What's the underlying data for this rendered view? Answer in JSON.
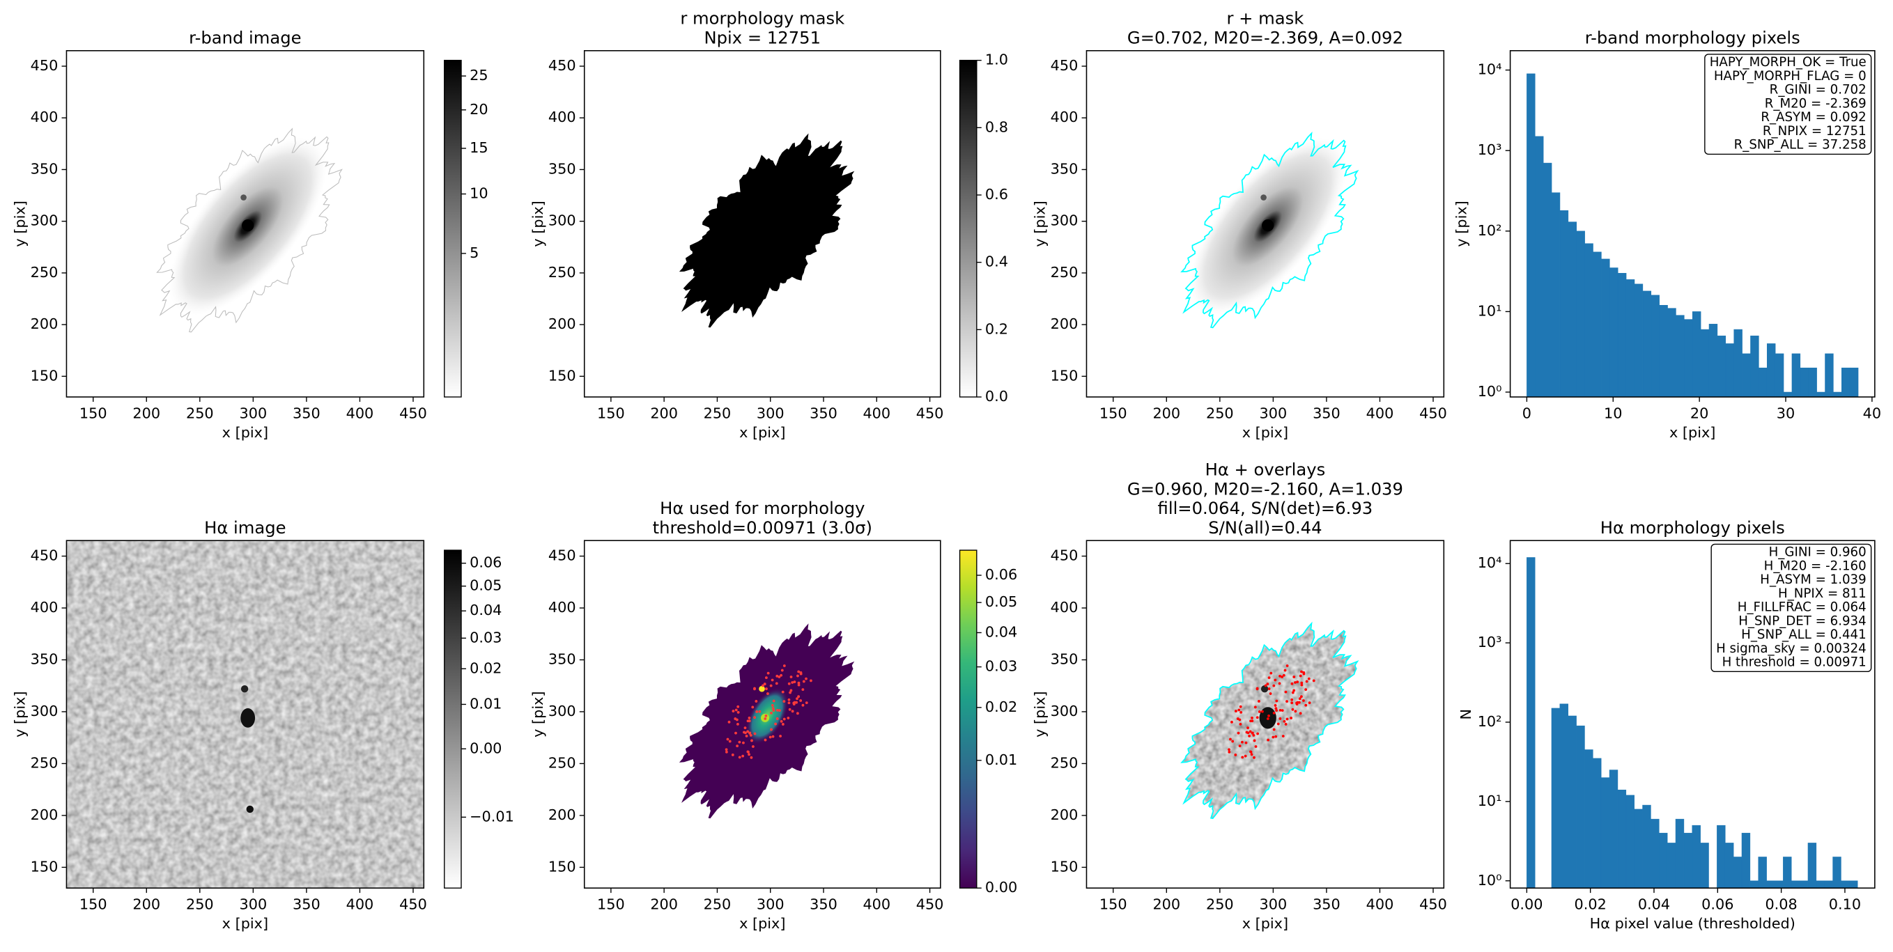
{
  "chart_data": [
    {
      "type": "image",
      "title": [
        "r-band image"
      ],
      "xlabel": "x [pix]",
      "ylabel": "y [pix]",
      "xlim": [
        125,
        460
      ],
      "ylim": [
        130,
        465
      ],
      "xticks": [
        150,
        200,
        250,
        300,
        350,
        400,
        450
      ],
      "yticks": [
        150,
        200,
        250,
        300,
        350,
        400,
        450
      ],
      "cmap": "gray_r",
      "colorbar": {
        "lim": [
          0,
          27.5
        ],
        "scale": "sqrt",
        "ticks": [
          5,
          10,
          15,
          20,
          25
        ]
      }
    },
    {
      "type": "image",
      "title": [
        "r morphology mask",
        "Npix = 12751"
      ],
      "xlabel": "x [pix]",
      "ylabel": "y [pix]",
      "xlim": [
        125,
        460
      ],
      "ylim": [
        130,
        465
      ],
      "xticks": [
        150,
        200,
        250,
        300,
        350,
        400,
        450
      ],
      "yticks": [
        150,
        200,
        250,
        300,
        350,
        400,
        450
      ],
      "cmap": "gray_r",
      "colorbar": {
        "lim": [
          0,
          1
        ],
        "scale": "linear",
        "ticks": [
          {
            "value": 0,
            "label": "0.0"
          },
          {
            "value": 0.2,
            "label": "0.2"
          },
          {
            "value": 0.4,
            "label": "0.4"
          },
          {
            "value": 0.6,
            "label": "0.6"
          },
          {
            "value": 0.8,
            "label": "0.8"
          },
          {
            "value": 1,
            "label": "1.0"
          }
        ]
      }
    },
    {
      "type": "image",
      "title": [
        "r + mask",
        "G=0.702, M20=-2.369, A=0.092"
      ],
      "xlabel": "x [pix]",
      "ylabel": "y [pix]",
      "xlim": [
        125,
        460
      ],
      "ylim": [
        130,
        465
      ],
      "xticks": [
        150,
        200,
        250,
        300,
        350,
        400,
        450
      ],
      "yticks": [
        150,
        200,
        250,
        300,
        350,
        400,
        450
      ],
      "cmap": "gray_r",
      "contour_color": "#00ffff"
    },
    {
      "type": "histogram",
      "title": [
        "r-band morphology pixels"
      ],
      "xlabel": "x [pix]",
      "ylabel": "y [pix]",
      "color": "#1f77b4",
      "log_y": true,
      "xlim": [
        -1.92,
        40.32
      ],
      "xticks": [
        0,
        10,
        20,
        30,
        40
      ],
      "ylim": [
        0.87,
        17400
      ],
      "yticks": [
        {
          "value": 1,
          "label": "10⁰"
        },
        {
          "value": 10,
          "label": "10¹"
        },
        {
          "value": 100,
          "label": "10²"
        },
        {
          "value": 1000,
          "label": "10³"
        },
        {
          "value": 10000,
          "label": "10⁴"
        }
      ],
      "bins": [
        0,
        0.96,
        1.92,
        2.88,
        3.84,
        4.8,
        5.76,
        6.72,
        7.68,
        8.64,
        9.6,
        10.56,
        11.52,
        12.48,
        13.44,
        14.4,
        15.36,
        16.32,
        17.28,
        18.24,
        19.2,
        20.16,
        21.12,
        22.08,
        23.04,
        24,
        24.96,
        25.92,
        26.88,
        27.84,
        28.8,
        29.76,
        30.72,
        31.68,
        32.64,
        33.6,
        34.56,
        35.52,
        36.48,
        37.44,
        38.4
      ],
      "values": [
        9000,
        1500,
        700,
        300,
        180,
        130,
        100,
        70,
        55,
        45,
        35,
        30,
        25,
        22,
        18,
        16,
        12,
        11,
        9,
        8,
        10,
        6,
        7,
        5,
        4,
        6,
        3,
        5,
        2,
        4,
        3,
        1,
        3,
        2,
        2,
        1,
        3,
        1,
        2,
        2
      ],
      "annotation_lines": [
        "HAPY_MORPH_OK = True",
        "HAPY_MORPH_FLAG = 0",
        "R_GINI = 0.702",
        "R_M20 = -2.369",
        "R_ASYM = 0.092",
        "R_NPIX = 12751",
        "R_SNP_ALL = 37.258"
      ]
    },
    {
      "type": "image",
      "title": [
        "Hα image"
      ],
      "xlabel": "x [pix]",
      "ylabel": "y [pix]",
      "xlim": [
        125,
        460
      ],
      "ylim": [
        130,
        465
      ],
      "xticks": [
        150,
        200,
        250,
        300,
        350,
        400,
        450
      ],
      "yticks": [
        150,
        200,
        250,
        300,
        350,
        400,
        450
      ],
      "cmap": "gray_r",
      "colorbar": {
        "lim": [
          -0.0135,
          0.066
        ],
        "scale": "sqrt",
        "ticks": [
          {
            "value": -0.01,
            "label": "−0.01"
          },
          {
            "value": 0,
            "label": "0.00"
          },
          {
            "value": 0.01,
            "label": "0.01"
          },
          {
            "value": 0.02,
            "label": "0.02"
          },
          {
            "value": 0.03,
            "label": "0.03"
          },
          {
            "value": 0.04,
            "label": "0.04"
          },
          {
            "value": 0.05,
            "label": "0.05"
          },
          {
            "value": 0.06,
            "label": "0.06"
          }
        ]
      }
    },
    {
      "type": "image",
      "title": [
        "Hα used for morphology",
        "threshold=0.00971 (3.0σ)"
      ],
      "xlabel": "x [pix]",
      "ylabel": "y [pix]",
      "xlim": [
        125,
        460
      ],
      "ylim": [
        130,
        465
      ],
      "xticks": [
        150,
        200,
        250,
        300,
        350,
        400,
        450
      ],
      "yticks": [
        150,
        200,
        250,
        300,
        350,
        400,
        450
      ],
      "cmap": "viridis",
      "colorbar": {
        "lim": [
          0,
          0.07
        ],
        "scale": "sqrt",
        "ticks": [
          {
            "value": 0,
            "label": "0.00"
          },
          {
            "value": 0.01,
            "label": "0.01"
          },
          {
            "value": 0.02,
            "label": "0.02"
          },
          {
            "value": 0.03,
            "label": "0.03"
          },
          {
            "value": 0.04,
            "label": "0.04"
          },
          {
            "value": 0.05,
            "label": "0.05"
          },
          {
            "value": 0.06,
            "label": "0.06"
          }
        ]
      }
    },
    {
      "type": "image",
      "title": [
        "Hα + overlays",
        "G=0.960, M20=-2.160, A=1.039",
        "fill=0.064, S/N(det)=6.93",
        "S/N(all)=0.44"
      ],
      "xlabel": "x [pix]",
      "ylabel": "y [pix]",
      "xlim": [
        125,
        460
      ],
      "ylim": [
        130,
        465
      ],
      "xticks": [
        150,
        200,
        250,
        300,
        350,
        400,
        450
      ],
      "yticks": [
        150,
        200,
        250,
        300,
        350,
        400,
        450
      ],
      "cmap": "gray_r",
      "contour_color": "#00ffff",
      "points_color": "#ff0000"
    },
    {
      "type": "histogram",
      "title": [
        "Hα morphology pixels"
      ],
      "xlabel": "Hα pixel value (thresholded)",
      "ylabel": "N",
      "color": "#1f77b4",
      "log_y": true,
      "xlim": [
        -0.0052,
        0.1094
      ],
      "xticks": [
        {
          "value": 0,
          "label": "0.00"
        },
        {
          "value": 0.02,
          "label": "0.02"
        },
        {
          "value": 0.04,
          "label": "0.04"
        },
        {
          "value": 0.06,
          "label": "0.06"
        },
        {
          "value": 0.08,
          "label": "0.08"
        },
        {
          "value": 0.1,
          "label": "0.10"
        }
      ],
      "ylim": [
        0.81,
        19500
      ],
      "yticks": [
        {
          "value": 1,
          "label": "10⁰"
        },
        {
          "value": 10,
          "label": "10¹"
        },
        {
          "value": 100,
          "label": "10²"
        },
        {
          "value": 1000,
          "label": "10³"
        },
        {
          "value": 10000,
          "label": "10⁴"
        }
      ],
      "bins": [
        0,
        0.0026,
        0.0052,
        0.0078,
        0.0104,
        0.013,
        0.0156,
        0.0182,
        0.0208,
        0.0234,
        0.026,
        0.0286,
        0.0312,
        0.0338,
        0.0364,
        0.039,
        0.0416,
        0.0442,
        0.0468,
        0.0494,
        0.052,
        0.0546,
        0.0572,
        0.0598,
        0.0624,
        0.065,
        0.0676,
        0.0702,
        0.0728,
        0.0754,
        0.078,
        0.0806,
        0.0832,
        0.0858,
        0.0884,
        0.091,
        0.0936,
        0.0962,
        0.0988,
        0.1014,
        0.104
      ],
      "values": [
        11940,
        0,
        0,
        150,
        170,
        120,
        90,
        45,
        35,
        20,
        25,
        14,
        12,
        8,
        9,
        6,
        4,
        3,
        6,
        4,
        5,
        3,
        0,
        5,
        3,
        2,
        4,
        1,
        2,
        1,
        1,
        2,
        1,
        1,
        3,
        1,
        1,
        2,
        1,
        1
      ],
      "annotation_lines": [
        "H_GINI = 0.960",
        "H_M20 = -2.160",
        "H_ASYM = 1.039",
        "H_NPIX = 811",
        "H_FILLFRAC = 0.064",
        "H_SNP_DET = 6.934",
        "H_SNP_ALL = 0.441",
        "H sigma_sky = 0.00324",
        "H threshold = 0.00971"
      ]
    }
  ]
}
